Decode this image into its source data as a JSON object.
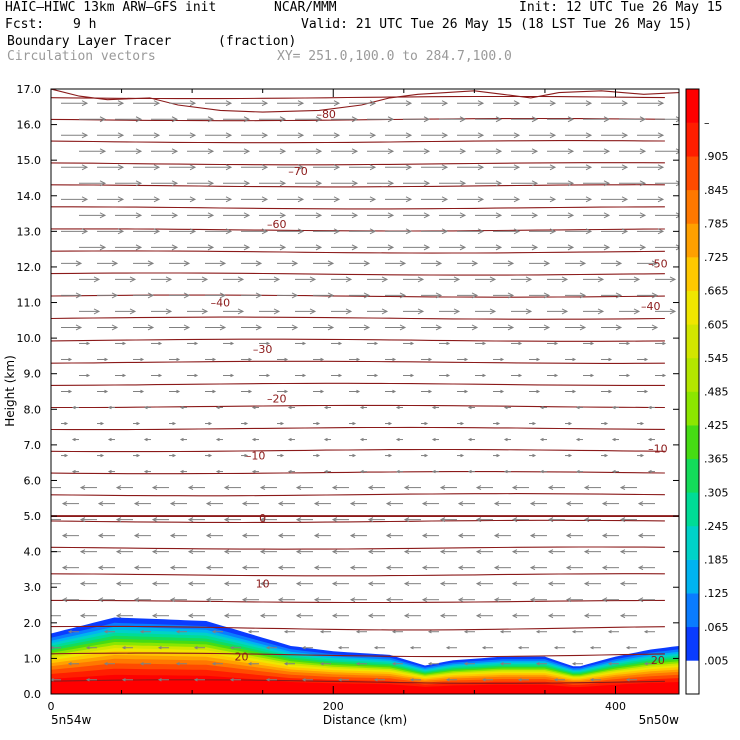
{
  "header": {
    "model": "HAIC–HIWC 13km ARW–GFS init",
    "org": "NCAR/MMM",
    "init": "Init: 12 UTC Tue 26 May 15",
    "fcst_label": "Fcst:",
    "fcst_value": "9 h",
    "valid": "Valid: 21 UTC Tue 26 May 15 (18 LST Tue 26 May 15)",
    "field": "Boundary Layer Tracer",
    "units": "(fraction)",
    "vectors": "Circulation vectors",
    "xy": "XY= 251.0,100.0 to 284.7,100.0"
  },
  "chart_data": {
    "type": "heatmap",
    "xlabel": "Distance (km)",
    "ylabel": "Height (km)",
    "xlim": [
      0,
      445
    ],
    "ylim": [
      0,
      17
    ],
    "x_ticks": [
      0,
      200,
      400
    ],
    "y_ticks": [
      "0.0",
      "1.0",
      "2.0",
      "3.0",
      "4.0",
      "5.0",
      "6.0",
      "7.0",
      "8.0",
      "9.0",
      "10.0",
      "11.0",
      "12.0",
      "13.0",
      "14.0",
      "15.0",
      "16.0",
      "17.0"
    ],
    "x_end_labels": [
      "5n54w",
      "5n50w"
    ],
    "colorbar": {
      "labels": [
        ".005",
        ".065",
        ".125",
        ".185",
        ".245",
        ".305",
        ".365",
        ".425",
        ".485",
        ".545",
        ".605",
        ".665",
        ".725",
        ".785",
        ".845",
        ".905",
        "–"
      ],
      "colors": [
        "#ffffff",
        "#0a3cff",
        "#0a7cff",
        "#00b4f0",
        "#00d2c8",
        "#00dc96",
        "#14dc5a",
        "#46dc14",
        "#8ce600",
        "#b4e600",
        "#d2e600",
        "#f0e600",
        "#ffc800",
        "#ffa000",
        "#ff7800",
        "#ff4b00",
        "#ff1e00",
        "#ff0000"
      ]
    },
    "contours": {
      "color": "#8b1a1a",
      "labels": [
        {
          "value": "–80",
          "x": 195,
          "y": 16.3
        },
        {
          "value": "–70",
          "x": 175,
          "y": 14.7
        },
        {
          "value": "–60",
          "x": 160,
          "y": 13.2
        },
        {
          "value": "–50",
          "x": 430,
          "y": 12.1
        },
        {
          "value": "–40",
          "x": 120,
          "y": 11.0
        },
        {
          "value": "–40",
          "x": 425,
          "y": 10.9
        },
        {
          "value": "–30",
          "x": 150,
          "y": 9.7
        },
        {
          "value": "–20",
          "x": 160,
          "y": 8.3
        },
        {
          "value": "–10",
          "x": 145,
          "y": 6.7
        },
        {
          "value": "–10",
          "x": 430,
          "y": 6.9
        },
        {
          "value": "0",
          "x": 150,
          "y": 4.95
        },
        {
          "value": "10",
          "x": 150,
          "y": 3.1
        },
        {
          "value": "20",
          "x": 135,
          "y": 1.05
        },
        {
          "value": "20",
          "x": 430,
          "y": 0.95
        }
      ]
    },
    "pbl_top_km": [
      [
        0,
        1.7
      ],
      [
        25,
        1.95
      ],
      [
        45,
        2.15
      ],
      [
        80,
        2.1
      ],
      [
        110,
        2.05
      ],
      [
        140,
        1.7
      ],
      [
        170,
        1.35
      ],
      [
        200,
        1.2
      ],
      [
        240,
        1.1
      ],
      [
        265,
        0.8
      ],
      [
        285,
        0.95
      ],
      [
        320,
        1.05
      ],
      [
        350,
        1.05
      ],
      [
        372,
        0.75
      ],
      [
        400,
        1.05
      ],
      [
        425,
        1.25
      ],
      [
        445,
        1.35
      ]
    ],
    "vector_color": "#808080"
  }
}
